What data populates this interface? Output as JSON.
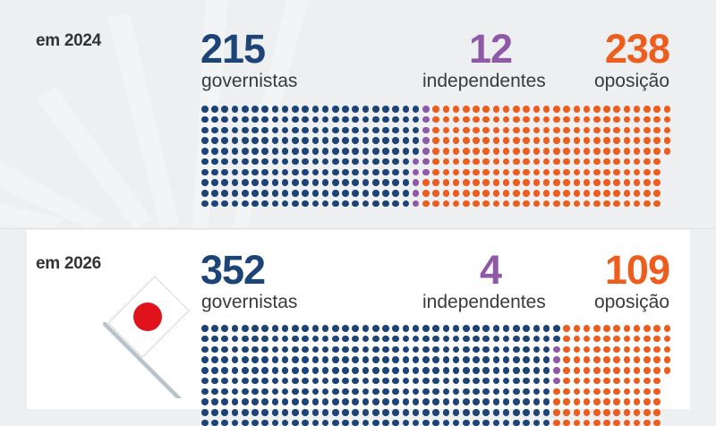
{
  "colors": {
    "governistas": "#1d4477",
    "independentes": "#8e5aa8",
    "oposicao": "#ec5d1e",
    "background": "#eeeff1",
    "card": "#ffffff"
  },
  "section_2024": {
    "year_label": "em 2024",
    "governistas": {
      "value": "215",
      "label": "governistas"
    },
    "independentes": {
      "value": "12",
      "label": "independentes"
    },
    "oposicao": {
      "value": "238",
      "label": "oposição"
    }
  },
  "section_2026": {
    "year_label": "em 2026",
    "governistas": {
      "value": "352",
      "label": "governistas"
    },
    "independentes": {
      "value": "4",
      "label": "independentes"
    },
    "oposicao": {
      "value": "109",
      "label": "oposição"
    },
    "icon": "japan-flag-icon"
  },
  "chart_data": [
    {
      "type": "waffle",
      "title": "em 2024",
      "categories": [
        "governistas",
        "independentes",
        "oposição"
      ],
      "values": [
        215,
        12,
        238
      ],
      "total": 465,
      "rows": 10,
      "fill_order": "column-major",
      "colors": [
        "#1d4477",
        "#8e5aa8",
        "#ec5d1e"
      ]
    },
    {
      "type": "waffle",
      "title": "em 2026",
      "categories": [
        "governistas",
        "independentes",
        "oposição"
      ],
      "values": [
        352,
        4,
        109
      ],
      "total": 465,
      "rows": 10,
      "fill_order": "column-major",
      "colors": [
        "#1d4477",
        "#8e5aa8",
        "#ec5d1e"
      ]
    }
  ]
}
